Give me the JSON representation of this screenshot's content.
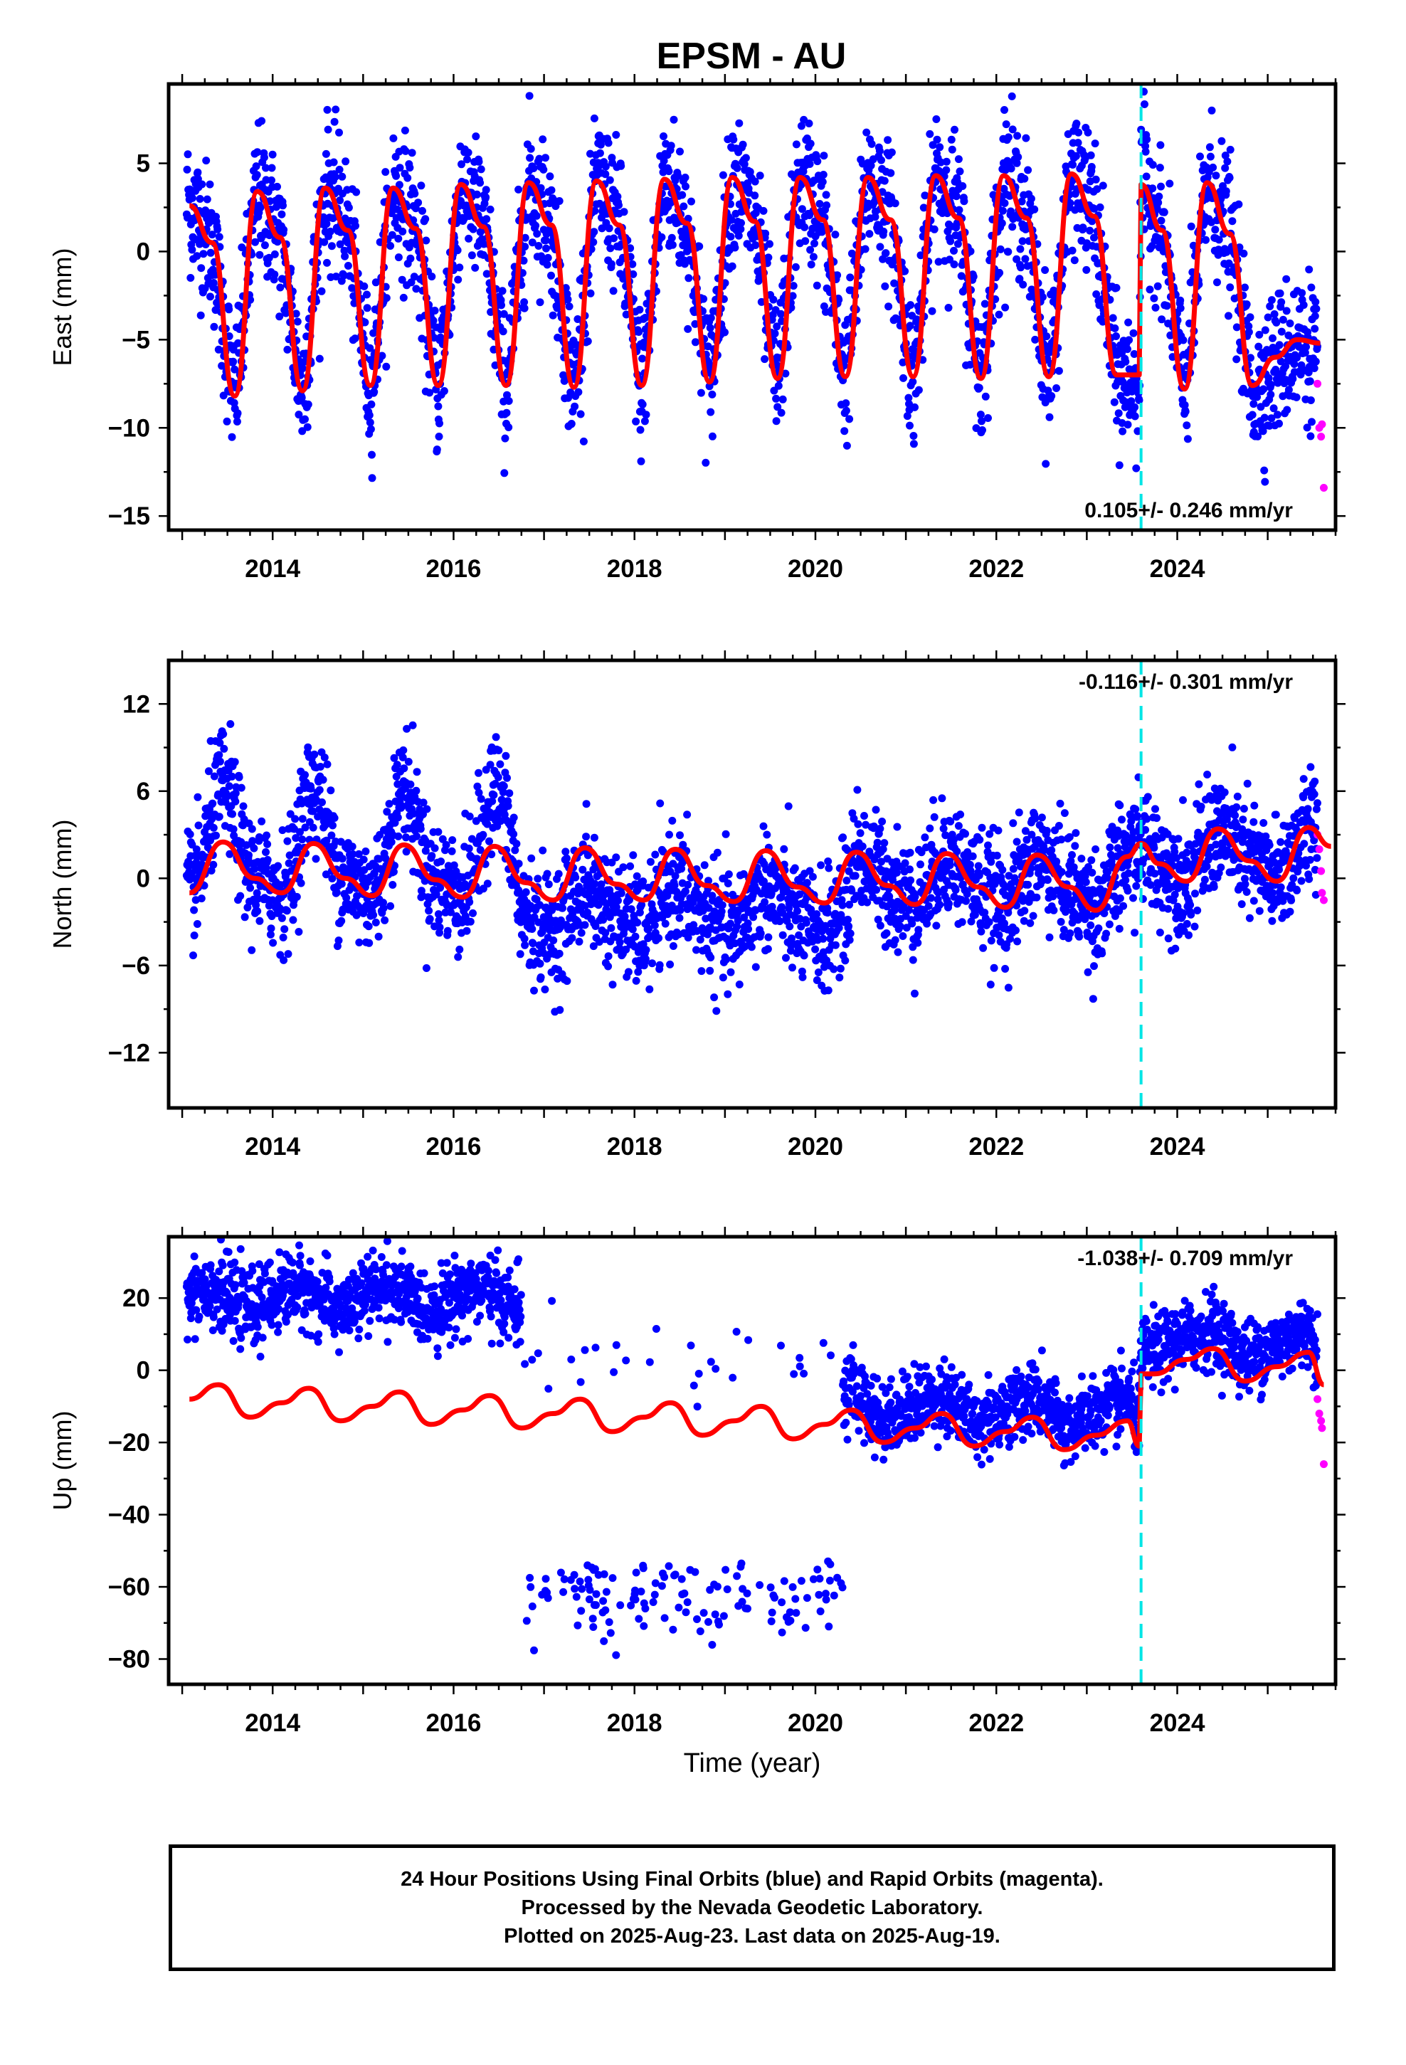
{
  "title": "EPSM - AU",
  "colors": {
    "final_orbits": "#0000ff",
    "rapid_orbits": "#ff00ff",
    "model": "#ff0000",
    "event_line": "#00e5e5",
    "frame": "#000000"
  },
  "chart_data": [
    {
      "type": "scatter",
      "name": "east",
      "ylabel": "East (mm)",
      "xlim": [
        2012.85,
        2025.75
      ],
      "ylim": [
        -15.8,
        9.5
      ],
      "xticks": [
        2014,
        2016,
        2018,
        2020,
        2022,
        2024
      ],
      "xtick_labels": [
        "2014",
        "2016",
        "2018",
        "2020",
        "2022",
        "2024"
      ],
      "yticks": [
        -15,
        -10,
        -5,
        0,
        5
      ],
      "ytick_labels": [
        "−15",
        "−10",
        "−5",
        "0",
        "5"
      ],
      "rate_label": "0.105+/- 0.246 mm/yr",
      "rate_position": "bottom-right",
      "event_line_x": 2023.6,
      "model": {
        "x": [
          2013.08,
          2013.33,
          2013.58,
          2013.83,
          2014.08,
          2014.33,
          2014.58,
          2014.83,
          2015.08,
          2015.33,
          2015.58,
          2015.83,
          2016.08,
          2016.33,
          2016.58,
          2016.83,
          2017.08,
          2017.33,
          2017.58,
          2017.83,
          2018.08,
          2018.33,
          2018.58,
          2018.83,
          2019.08,
          2019.33,
          2019.58,
          2019.83,
          2020.08,
          2020.33,
          2020.58,
          2020.83,
          2021.08,
          2021.33,
          2021.58,
          2021.83,
          2022.08,
          2022.33,
          2022.58,
          2022.83,
          2023.08,
          2023.33,
          2023.58,
          2023.6,
          2023.83,
          2024.08,
          2024.33,
          2024.58,
          2024.83,
          2025.08,
          2025.33,
          2025.58
        ],
        "y": [
          2.6,
          0.5,
          -8.2,
          3.4,
          0.8,
          -7.9,
          3.6,
          1.2,
          -7.6,
          3.6,
          1.3,
          -7.6,
          3.8,
          1.4,
          -7.6,
          3.9,
          1.5,
          -7.7,
          4.0,
          1.5,
          -7.6,
          4.1,
          1.6,
          -7.4,
          4.2,
          1.7,
          -7.2,
          4.2,
          1.8,
          -7.1,
          4.2,
          1.8,
          -7.1,
          4.3,
          1.9,
          -7.2,
          4.3,
          1.9,
          -7.1,
          4.4,
          2.0,
          -7.0,
          -7.0,
          3.8,
          1.2,
          -7.8,
          3.9,
          1.0,
          -7.6,
          -6.0,
          -5.0,
          -5.2
        ]
      },
      "rapid": {
        "x": [
          2025.55,
          2025.57,
          2025.59,
          2025.6,
          2025.62
        ],
        "y": [
          -7.5,
          -10.0,
          -10.5,
          -9.8,
          -13.4
        ]
      }
    },
    {
      "type": "scatter",
      "name": "north",
      "ylabel": "North (mm)",
      "xlim": [
        2012.85,
        2025.75
      ],
      "ylim": [
        -15.8,
        15.0
      ],
      "xticks": [
        2014,
        2016,
        2018,
        2020,
        2022,
        2024
      ],
      "xtick_labels": [
        "2014",
        "2016",
        "2018",
        "2020",
        "2022",
        "2024"
      ],
      "yticks": [
        -12,
        -6,
        0,
        6,
        12
      ],
      "ytick_labels": [
        "−12",
        "−6",
        "0",
        "6",
        "12"
      ],
      "rate_label": "-0.116+/- 0.301 mm/yr",
      "rate_position": "top-right",
      "event_line_x": 2023.6,
      "model": {
        "x": [
          2013.08,
          2013.45,
          2013.8,
          2014.1,
          2014.45,
          2014.8,
          2015.1,
          2015.45,
          2015.8,
          2016.1,
          2016.45,
          2016.8,
          2017.1,
          2017.45,
          2017.8,
          2018.1,
          2018.45,
          2018.8,
          2019.1,
          2019.45,
          2019.8,
          2020.1,
          2020.45,
          2020.8,
          2021.1,
          2021.45,
          2021.8,
          2022.1,
          2022.45,
          2022.8,
          2023.1,
          2023.45,
          2023.6,
          2023.8,
          2024.1,
          2024.45,
          2024.8,
          2025.1,
          2025.45,
          2025.7
        ],
        "y": [
          -1.0,
          2.5,
          0.0,
          -1.0,
          2.4,
          0.0,
          -1.2,
          2.3,
          -0.1,
          -1.3,
          2.2,
          -0.3,
          -1.5,
          2.1,
          -0.4,
          -1.5,
          2.0,
          -0.5,
          -1.6,
          1.9,
          -0.6,
          -1.7,
          1.8,
          -0.5,
          -1.8,
          1.7,
          -0.6,
          -2.0,
          1.6,
          -0.6,
          -2.2,
          1.5,
          2.4,
          1.0,
          -0.2,
          3.4,
          1.2,
          -0.2,
          3.5,
          2.2
        ]
      },
      "rapid": {
        "x": [
          2025.55,
          2025.57,
          2025.59,
          2025.6,
          2025.62
        ],
        "y": [
          3.0,
          2.0,
          0.5,
          -1.0,
          -1.5
        ]
      }
    },
    {
      "type": "scatter",
      "name": "up",
      "ylabel": "Up (mm)",
      "xlabel": "Time (year)",
      "xlim": [
        2012.85,
        2025.75
      ],
      "ylim": [
        -87,
        37
      ],
      "xticks": [
        2014,
        2016,
        2018,
        2020,
        2022,
        2024
      ],
      "xtick_labels": [
        "2014",
        "2016",
        "2018",
        "2020",
        "2022",
        "2024"
      ],
      "yticks": [
        -80,
        -60,
        -40,
        -20,
        0,
        20
      ],
      "ytick_labels": [
        "−80",
        "−60",
        "−40",
        "−20",
        "0",
        "20"
      ],
      "rate_label": "-1.038+/- 0.709 mm/yr",
      "rate_position": "top-right",
      "event_line_x": 2023.6,
      "model": {
        "x": [
          2013.08,
          2013.4,
          2013.75,
          2014.1,
          2014.4,
          2014.75,
          2015.1,
          2015.4,
          2015.75,
          2016.1,
          2016.4,
          2016.75,
          2017.1,
          2017.4,
          2017.75,
          2018.1,
          2018.4,
          2018.75,
          2019.1,
          2019.4,
          2019.75,
          2020.1,
          2020.4,
          2020.75,
          2021.1,
          2021.4,
          2021.75,
          2022.1,
          2022.4,
          2022.75,
          2023.1,
          2023.45,
          2023.58,
          2023.6,
          2023.75,
          2024.1,
          2024.4,
          2024.75,
          2025.1,
          2025.45,
          2025.62
        ],
        "y": [
          -8,
          -4,
          -13,
          -9,
          -5,
          -14,
          -10,
          -6,
          -15,
          -11,
          -7,
          -16,
          -12,
          -8,
          -17,
          -13,
          -9,
          -18,
          -14,
          -10,
          -19,
          -15,
          -11,
          -20,
          -16,
          -12,
          -21,
          -17,
          -13,
          -22,
          -18,
          -14,
          -21,
          -1,
          -1,
          3,
          6,
          -3,
          1,
          5,
          -4
        ]
      },
      "rapid": {
        "x": [
          2025.55,
          2025.57,
          2025.59,
          2025.6,
          2025.62
        ],
        "y": [
          -8,
          -12,
          -14,
          -16,
          -26
        ]
      }
    }
  ],
  "footer": {
    "line1": "24 Hour Positions Using Final Orbits (blue) and Rapid Orbits (magenta).",
    "line2": "Processed by the Nevada Geodetic Laboratory.",
    "line3": "Plotted on 2025-Aug-23. Last data on 2025-Aug-19."
  }
}
